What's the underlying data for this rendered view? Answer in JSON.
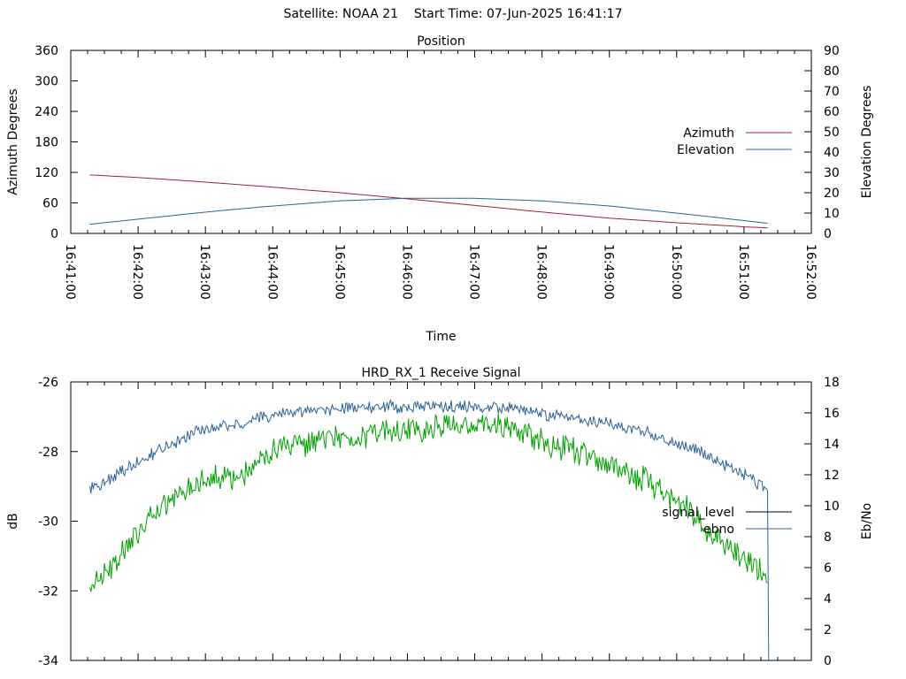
{
  "header": {
    "satellite": "Satellite: NOAA 21",
    "start_time": "Start Time: 07-Jun-2025 16:41:17"
  },
  "chart_data": [
    {
      "type": "line",
      "title": "Position",
      "xlabel": "Time",
      "ylabel": "Azimuth Degrees",
      "y2label": "Elevation Degrees",
      "x_ticks": [
        "16:41:00",
        "16:42:00",
        "16:43:00",
        "16:44:00",
        "16:45:00",
        "16:46:00",
        "16:47:00",
        "16:48:00",
        "16:49:00",
        "16:50:00",
        "16:51:00",
        "16:52:00"
      ],
      "xlim": [
        "16:41:00",
        "16:52:00"
      ],
      "ylim": [
        0,
        360
      ],
      "y_ticks": [
        0,
        60,
        120,
        180,
        240,
        300,
        360
      ],
      "y2lim": [
        0,
        90
      ],
      "y2_ticks": [
        0,
        10,
        20,
        30,
        40,
        50,
        60,
        70,
        80,
        90
      ],
      "legend_position": "right",
      "grid": false,
      "series": [
        {
          "name": "Azimuth",
          "axis": "y",
          "color": "#a0212b",
          "x": [
            "16:41:17",
            "16:42:00",
            "16:43:00",
            "16:44:00",
            "16:45:00",
            "16:46:00",
            "16:47:00",
            "16:48:00",
            "16:49:00",
            "16:50:00",
            "16:51:00",
            "16:51:21"
          ],
          "values": [
            115,
            110,
            101,
            91,
            80,
            68,
            55,
            42,
            30,
            21,
            13,
            11
          ]
        },
        {
          "name": "Elevation",
          "axis": "y2",
          "color": "#2c6496",
          "x": [
            "16:41:17",
            "16:42:00",
            "16:43:00",
            "16:44:00",
            "16:45:00",
            "16:46:00",
            "16:47:00",
            "16:48:00",
            "16:49:00",
            "16:50:00",
            "16:51:00",
            "16:51:21"
          ],
          "values": [
            4.5,
            7,
            10.5,
            13.5,
            16,
            17.3,
            17.3,
            16,
            13.5,
            10,
            6.3,
            5
          ]
        }
      ]
    },
    {
      "type": "line",
      "title": "HRD_RX_1 Receive Signal",
      "ylabel": "dB",
      "y2label": "Eb/No",
      "ylim": [
        -34,
        -26
      ],
      "y_ticks": [
        -34,
        -32,
        -30,
        -28,
        -26
      ],
      "y2lim": [
        0,
        18
      ],
      "y2_ticks": [
        0,
        2,
        4,
        6,
        8,
        10,
        12,
        14,
        16,
        18
      ],
      "xlim": [
        "16:41:00",
        "16:52:00"
      ],
      "legend_position": "right",
      "grid": false,
      "series": [
        {
          "name": "signal_level",
          "axis": "y",
          "color": "#00a000",
          "x": [
            "16:41:17",
            "16:41:40",
            "16:42:00",
            "16:42:30",
            "16:43:00",
            "16:43:30",
            "16:44:00",
            "16:44:30",
            "16:45:00",
            "16:45:30",
            "16:46:00",
            "16:46:30",
            "16:47:00",
            "16:47:30",
            "16:48:00",
            "16:48:30",
            "16:49:00",
            "16:49:30",
            "16:50:00",
            "16:50:30",
            "16:51:00",
            "16:51:21"
          ],
          "values": [
            -31.8,
            -31.2,
            -30.3,
            -29.4,
            -28.7,
            -28.8,
            -28.0,
            -27.8,
            -27.6,
            -27.5,
            -27.4,
            -27.3,
            -27.2,
            -27.3,
            -27.7,
            -28.0,
            -28.4,
            -28.8,
            -29.4,
            -30.3,
            -31.1,
            -31.5
          ]
        },
        {
          "name": "ebno",
          "axis": "y2",
          "color": "#2c6496",
          "x": [
            "16:41:17",
            "16:41:40",
            "16:42:00",
            "16:42:30",
            "16:43:00",
            "16:43:30",
            "16:44:00",
            "16:44:30",
            "16:45:00",
            "16:45:30",
            "16:46:00",
            "16:46:30",
            "16:47:00",
            "16:47:30",
            "16:48:00",
            "16:48:30",
            "16:49:00",
            "16:49:30",
            "16:50:00",
            "16:50:30",
            "16:51:00",
            "16:51:21",
            "16:51:22"
          ],
          "values": [
            11.0,
            12.0,
            12.8,
            14.0,
            15.0,
            15.3,
            15.9,
            16.1,
            16.3,
            16.4,
            16.4,
            16.5,
            16.4,
            16.3,
            16.0,
            15.6,
            15.3,
            14.8,
            14.1,
            13.2,
            12.0,
            11.0,
            0.0
          ]
        }
      ]
    }
  ]
}
